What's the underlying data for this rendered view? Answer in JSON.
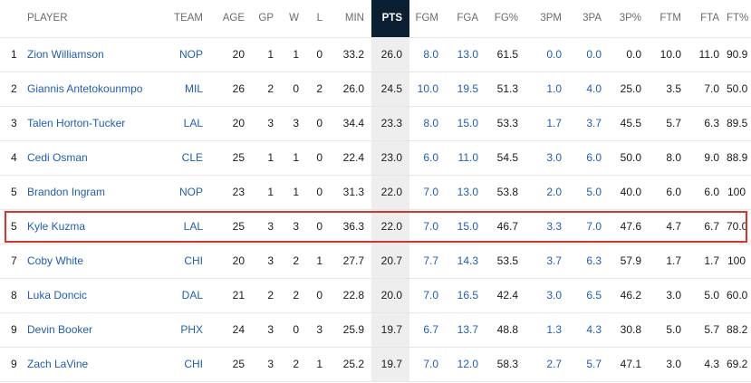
{
  "columns": [
    "",
    "PLAYER",
    "TEAM",
    "AGE",
    "GP",
    "W",
    "L",
    "MIN",
    "PTS",
    "FGM",
    "FGA",
    "FG%",
    "3PM",
    "3PA",
    "3P%",
    "FTM",
    "FTA",
    "FT%"
  ],
  "rows": [
    {
      "rank": "1",
      "player": "Zion Williamson",
      "team": "NOP",
      "age": "20",
      "gp": "1",
      "w": "1",
      "l": "0",
      "min": "33.2",
      "pts": "26.0",
      "fgm": "8.0",
      "fga": "13.0",
      "fgp": "61.5",
      "tpm": "0.0",
      "tpa": "0.0",
      "tpp": "0.0",
      "ftm": "10.0",
      "fta": "11.0",
      "ftp": "90.9"
    },
    {
      "rank": "2",
      "player": "Giannis Antetokounmpo",
      "team": "MIL",
      "age": "26",
      "gp": "2",
      "w": "0",
      "l": "2",
      "min": "26.0",
      "pts": "24.5",
      "fgm": "10.0",
      "fga": "19.5",
      "fgp": "51.3",
      "tpm": "1.0",
      "tpa": "4.0",
      "tpp": "25.0",
      "ftm": "3.5",
      "fta": "7.0",
      "ftp": "50.0"
    },
    {
      "rank": "3",
      "player": "Talen Horton-Tucker",
      "team": "LAL",
      "age": "20",
      "gp": "3",
      "w": "3",
      "l": "0",
      "min": "34.4",
      "pts": "23.3",
      "fgm": "8.0",
      "fga": "15.0",
      "fgp": "53.3",
      "tpm": "1.7",
      "tpa": "3.7",
      "tpp": "45.5",
      "ftm": "5.7",
      "fta": "6.3",
      "ftp": "89.5"
    },
    {
      "rank": "4",
      "player": "Cedi Osman",
      "team": "CLE",
      "age": "25",
      "gp": "1",
      "w": "1",
      "l": "0",
      "min": "22.4",
      "pts": "23.0",
      "fgm": "6.0",
      "fga": "11.0",
      "fgp": "54.5",
      "tpm": "3.0",
      "tpa": "6.0",
      "tpp": "50.0",
      "ftm": "8.0",
      "fta": "9.0",
      "ftp": "88.9"
    },
    {
      "rank": "5",
      "player": "Brandon Ingram",
      "team": "NOP",
      "age": "23",
      "gp": "1",
      "w": "1",
      "l": "0",
      "min": "31.3",
      "pts": "22.0",
      "fgm": "7.0",
      "fga": "13.0",
      "fgp": "53.8",
      "tpm": "2.0",
      "tpa": "5.0",
      "tpp": "40.0",
      "ftm": "6.0",
      "fta": "6.0",
      "ftp": "100"
    },
    {
      "rank": "5",
      "player": "Kyle Kuzma",
      "team": "LAL",
      "age": "25",
      "gp": "3",
      "w": "3",
      "l": "0",
      "min": "36.3",
      "pts": "22.0",
      "fgm": "7.0",
      "fga": "15.0",
      "fgp": "46.7",
      "tpm": "3.3",
      "tpa": "7.0",
      "tpp": "47.6",
      "ftm": "4.7",
      "fta": "6.7",
      "ftp": "70.0"
    },
    {
      "rank": "7",
      "player": "Coby White",
      "team": "CHI",
      "age": "20",
      "gp": "3",
      "w": "2",
      "l": "1",
      "min": "27.7",
      "pts": "20.7",
      "fgm": "7.7",
      "fga": "14.3",
      "fgp": "53.5",
      "tpm": "3.7",
      "tpa": "6.3",
      "tpp": "57.9",
      "ftm": "1.7",
      "fta": "1.7",
      "ftp": "100"
    },
    {
      "rank": "8",
      "player": "Luka Doncic",
      "team": "DAL",
      "age": "21",
      "gp": "2",
      "w": "2",
      "l": "0",
      "min": "22.8",
      "pts": "20.0",
      "fgm": "7.0",
      "fga": "16.5",
      "fgp": "42.4",
      "tpm": "3.0",
      "tpa": "6.5",
      "tpp": "46.2",
      "ftm": "3.0",
      "fta": "5.0",
      "ftp": "60.0"
    },
    {
      "rank": "9",
      "player": "Devin Booker",
      "team": "PHX",
      "age": "24",
      "gp": "3",
      "w": "0",
      "l": "3",
      "min": "25.9",
      "pts": "19.7",
      "fgm": "6.7",
      "fga": "13.7",
      "fgp": "48.8",
      "tpm": "1.3",
      "tpa": "4.3",
      "tpp": "30.8",
      "ftm": "5.0",
      "fta": "5.7",
      "ftp": "88.2"
    },
    {
      "rank": "9",
      "player": "Zach LaVine",
      "team": "CHI",
      "age": "25",
      "gp": "3",
      "w": "2",
      "l": "1",
      "min": "25.2",
      "pts": "19.7",
      "fgm": "7.0",
      "fga": "12.0",
      "fgp": "58.3",
      "tpm": "2.7",
      "tpa": "5.7",
      "tpp": "47.1",
      "ftm": "3.0",
      "fta": "4.3",
      "ftp": "69.2"
    }
  ],
  "highlighted_row": "Kyle Kuzma",
  "sorted_column": "PTS",
  "colors": {
    "accent": "#1d5fb4",
    "sorted_header": "#0b1f33",
    "highlight": "#d9342b"
  }
}
